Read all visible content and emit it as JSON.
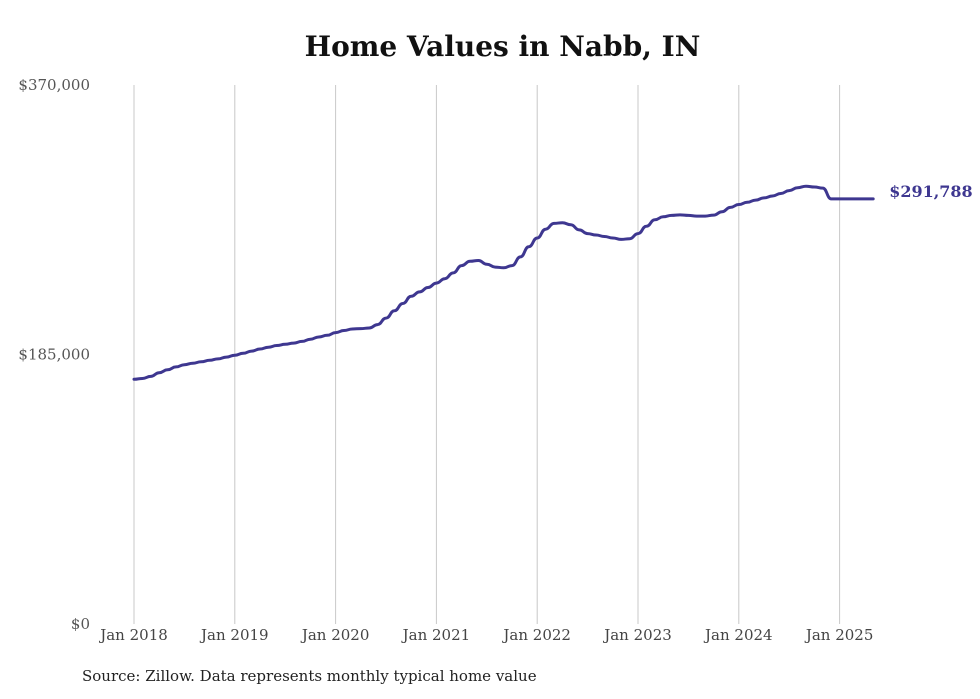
{
  "chart_data": {
    "type": "line",
    "title": "Home Values in Nabb, IN",
    "source": "Source: Zillow. Data represents monthly typical home value",
    "ylim": [
      0,
      370000
    ],
    "y_ticks": [
      {
        "value": 0,
        "label": "$0"
      },
      {
        "value": 185000,
        "label": "$185,000"
      },
      {
        "value": 370000,
        "label": "$370,000"
      }
    ],
    "x_ticks": [
      "Jan 2018",
      "Jan 2019",
      "Jan 2020",
      "Jan 2021",
      "Jan 2022",
      "Jan 2023",
      "Jan 2024",
      "Jan 2025"
    ],
    "vertical_grid": true,
    "line_color": "#3e3790",
    "end_label": "$291,788",
    "series": [
      {
        "x": [
          "2018-01",
          "2018-02",
          "2018-03",
          "2018-04",
          "2018-05",
          "2018-06",
          "2018-07",
          "2018-08",
          "2018-09",
          "2018-10",
          "2018-11",
          "2018-12",
          "2019-01",
          "2019-02",
          "2019-03",
          "2019-04",
          "2019-05",
          "2019-06",
          "2019-07",
          "2019-08",
          "2019-09",
          "2019-10",
          "2019-11",
          "2019-12",
          "2020-01",
          "2020-02",
          "2020-03",
          "2020-04",
          "2020-05",
          "2020-06",
          "2020-07",
          "2020-08",
          "2020-09",
          "2020-10",
          "2020-11",
          "2020-12",
          "2021-01",
          "2021-02",
          "2021-03",
          "2021-04",
          "2021-05",
          "2021-06",
          "2021-07",
          "2021-08",
          "2021-09",
          "2021-10",
          "2021-11",
          "2021-12",
          "2022-01",
          "2022-02",
          "2022-03",
          "2022-04",
          "2022-05",
          "2022-06",
          "2022-07",
          "2022-08",
          "2022-09",
          "2022-10",
          "2022-11",
          "2022-12",
          "2023-01",
          "2023-02",
          "2023-03",
          "2023-04",
          "2023-05",
          "2023-06",
          "2023-07",
          "2023-08",
          "2023-09",
          "2023-10",
          "2023-11",
          "2023-12",
          "2024-01",
          "2024-02",
          "2024-03",
          "2024-04",
          "2024-05",
          "2024-06",
          "2024-07",
          "2024-08",
          "2024-09",
          "2024-10",
          "2024-11",
          "2024-12",
          "2025-01",
          "2025-02",
          "2025-03",
          "2025-04",
          "2025-05"
        ],
        "values": [
          168000,
          168500,
          170000,
          172500,
          174500,
          176500,
          178000,
          179000,
          180000,
          181000,
          182000,
          183200,
          184500,
          185800,
          187300,
          188800,
          190000,
          191200,
          192000,
          192800,
          194000,
          195500,
          197000,
          198200,
          200000,
          201500,
          202500,
          202800,
          203200,
          205500,
          210000,
          215000,
          220000,
          225000,
          228000,
          231000,
          234000,
          237000,
          241000,
          246000,
          249000,
          249500,
          247000,
          245000,
          244500,
          246000,
          252000,
          259000,
          265000,
          271000,
          275000,
          275500,
          274000,
          270500,
          268000,
          267000,
          266000,
          265000,
          264000,
          264500,
          268000,
          273000,
          277500,
          279500,
          280500,
          280800,
          280500,
          280000,
          280000,
          280700,
          283000,
          286000,
          288000,
          289500,
          291000,
          292500,
          293800,
          295500,
          297500,
          299500,
          300500,
          300000,
          299200,
          291788,
          291788,
          291788,
          291788,
          291788,
          291788
        ]
      }
    ]
  }
}
